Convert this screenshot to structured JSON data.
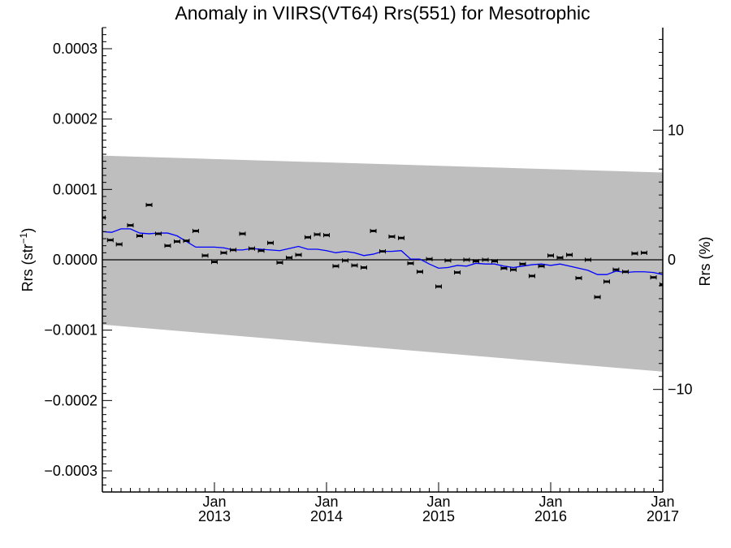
{
  "chart_data": {
    "type": "scatter",
    "title": "Anomaly in VIIRS(VT64) Rrs(551) for Mesotrophic",
    "ylabel": "Rrs (str",
    "ylabel_sup": "−1",
    "ylabel_close": ")",
    "y2label": "Rrs (%)",
    "xlim": [
      2012.0,
      2017.0
    ],
    "ylim": [
      -0.00033,
      0.00033
    ],
    "y2lim": [
      -17.91,
      17.91
    ],
    "x_major_ticks": [
      {
        "x": 2013.0,
        "label_month": "Jan",
        "label_year": "2013"
      },
      {
        "x": 2014.0,
        "label_month": "Jan",
        "label_year": "2014"
      },
      {
        "x": 2015.0,
        "label_month": "Jan",
        "label_year": "2015"
      },
      {
        "x": 2016.0,
        "label_month": "Jan",
        "label_year": "2016"
      },
      {
        "x": 2017.0,
        "label_month": "Jan",
        "label_year": "2017"
      }
    ],
    "y_ticks": [
      {
        "v": 0.0003,
        "label": "0.0003"
      },
      {
        "v": 0.0002,
        "label": "0.0002"
      },
      {
        "v": 0.0001,
        "label": "0.0001"
      },
      {
        "v": 0.0,
        "label": "0.0000"
      },
      {
        "v": -0.0001,
        "label": "−0.0001"
      },
      {
        "v": -0.0002,
        "label": "−0.0002"
      },
      {
        "v": -0.0003,
        "label": "−0.0003"
      }
    ],
    "y2_ticks": [
      {
        "v": 10,
        "label": "10"
      },
      {
        "v": 0,
        "label": "0"
      },
      {
        "v": -10,
        "label": "−10"
      }
    ],
    "zero_line": 0.0,
    "uncertainty_band": {
      "upper": [
        [
          2012.0,
          0.000148
        ],
        [
          2017.0,
          0.000124
        ]
      ],
      "lower": [
        [
          2012.0,
          -9.2e-05
        ],
        [
          2017.0,
          -0.000159
        ]
      ],
      "color": "#bebebe"
    },
    "series": [
      {
        "kind": "points",
        "color": "#000000",
        "x": [
          2012.0,
          2012.071,
          2012.15,
          2012.25,
          2012.333,
          2012.417,
          2012.5,
          2012.583,
          2012.667,
          2012.75,
          2012.833,
          2012.917,
          2013.0,
          2013.083,
          2013.167,
          2013.25,
          2013.333,
          2013.417,
          2013.5,
          2013.583,
          2013.667,
          2013.75,
          2013.833,
          2013.917,
          2014.0,
          2014.083,
          2014.167,
          2014.25,
          2014.333,
          2014.417,
          2014.5,
          2014.583,
          2014.667,
          2014.75,
          2014.833,
          2014.917,
          2015.0,
          2015.083,
          2015.167,
          2015.25,
          2015.333,
          2015.417,
          2015.5,
          2015.583,
          2015.667,
          2015.75,
          2015.833,
          2015.917,
          2016.0,
          2016.083,
          2016.167,
          2016.25,
          2016.333,
          2016.417,
          2016.5,
          2016.583,
          2016.667,
          2016.75,
          2016.833,
          2016.917,
          2017.0
        ],
        "y": [
          6e-05,
          2.8e-05,
          2.2e-05,
          4.9e-05,
          3.4e-05,
          7.8e-05,
          3.7e-05,
          2e-05,
          2.6e-05,
          2.7e-05,
          4.1e-05,
          6e-06,
          -3e-06,
          1e-05,
          1.4e-05,
          3.7e-05,
          1.6e-05,
          1.3e-05,
          2.4e-05,
          -4e-06,
          3e-06,
          7e-06,
          3.2e-05,
          3.6e-05,
          3.5e-05,
          -9e-06,
          -1e-06,
          -8e-06,
          -1.1e-05,
          4.1e-05,
          1.2e-05,
          3.3e-05,
          3.1e-05,
          -5e-06,
          -1.7e-05,
          1e-06,
          -3.8e-05,
          -1e-06,
          -1.8e-05,
          0.0,
          -2e-06,
          0.0,
          -2e-06,
          -1.2e-05,
          -1.4e-05,
          -6e-06,
          -2.3e-05,
          -9e-06,
          6e-06,
          3e-06,
          7e-06,
          -2.6e-05,
          0.0,
          -5.3e-05,
          -3.1e-05,
          -1.4e-05,
          -1.7e-05,
          9e-06,
          1e-05,
          -2.5e-05,
          -3.5e-05
        ]
      },
      {
        "kind": "line",
        "color": "#0000ff",
        "x": [
          2012.0,
          2012.083,
          2012.167,
          2012.25,
          2012.333,
          2012.417,
          2012.5,
          2012.583,
          2012.667,
          2012.75,
          2012.833,
          2012.917,
          2013.0,
          2013.083,
          2013.167,
          2013.25,
          2013.333,
          2013.417,
          2013.5,
          2013.583,
          2013.667,
          2013.75,
          2013.833,
          2013.917,
          2014.0,
          2014.083,
          2014.167,
          2014.25,
          2014.333,
          2014.417,
          2014.5,
          2014.583,
          2014.667,
          2014.75,
          2014.833,
          2014.917,
          2015.0,
          2015.083,
          2015.167,
          2015.25,
          2015.333,
          2015.417,
          2015.5,
          2015.583,
          2015.667,
          2015.75,
          2015.833,
          2015.917,
          2016.0,
          2016.083,
          2016.167,
          2016.25,
          2016.333,
          2016.417,
          2016.5,
          2016.583,
          2016.667,
          2016.75,
          2016.833,
          2016.917,
          2017.0
        ],
        "y": [
          4e-05,
          3.9e-05,
          4.4e-05,
          4.4e-05,
          3.8e-05,
          3.7e-05,
          3.8e-05,
          3.8e-05,
          3.4e-05,
          2.6e-05,
          1.8e-05,
          1.8e-05,
          1.8e-05,
          1.7e-05,
          1.4e-05,
          1.4e-05,
          1.6e-05,
          1.5e-05,
          1.4e-05,
          1.3e-05,
          1.6e-05,
          1.9e-05,
          1.5e-05,
          1.5e-05,
          1.3e-05,
          1e-05,
          1.2e-05,
          1e-05,
          6e-06,
          8e-06,
          1.2e-05,
          1.2e-05,
          1.3e-05,
          1e-06,
          1e-06,
          -6e-06,
          -1.2e-05,
          -1.1e-05,
          -8e-06,
          -9e-06,
          -5e-06,
          -6e-06,
          -6e-06,
          -9e-06,
          -1.1e-05,
          -9e-06,
          -7e-06,
          -6e-06,
          -8e-06,
          -6e-06,
          -9e-06,
          -1.2e-05,
          -1.5e-05,
          -2.1e-05,
          -2.1e-05,
          -1.6e-05,
          -1.8e-05,
          -1.7e-05,
          -1.7e-05,
          -1.8e-05,
          -2.1e-05
        ]
      }
    ],
    "grid": false,
    "legend": "none"
  }
}
